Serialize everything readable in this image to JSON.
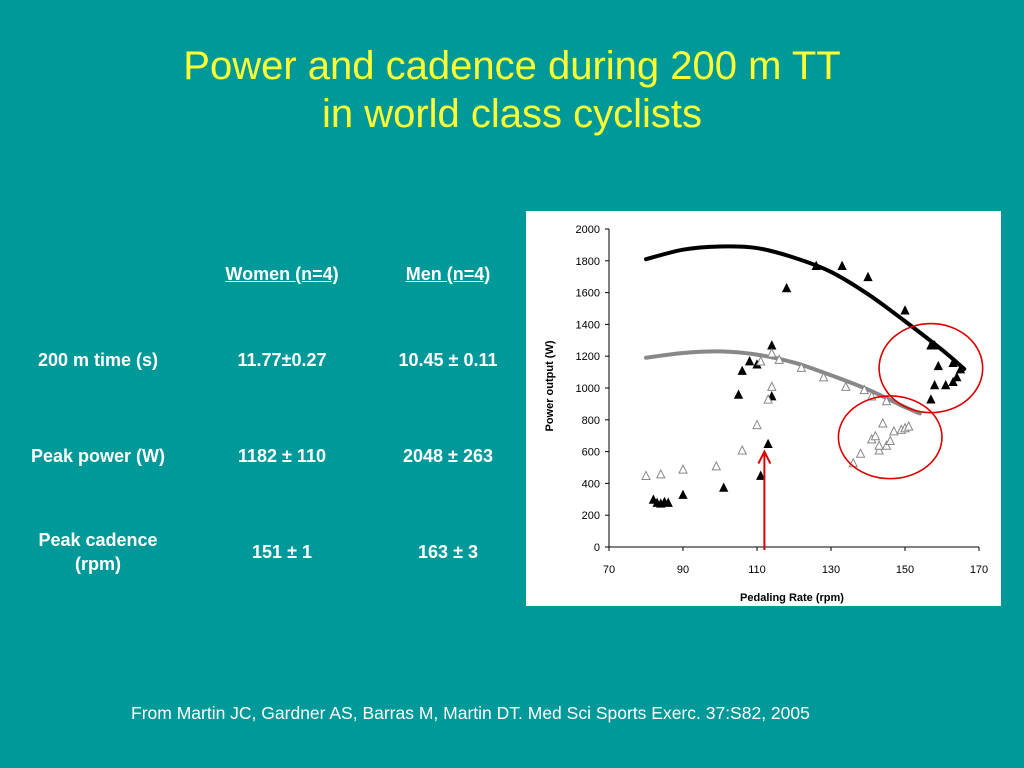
{
  "title": {
    "line1": "Power and cadence during 200 m TT",
    "line2": "in world class cyclists"
  },
  "stats_table": {
    "columns": [
      "Women (n=4)",
      "Men (n=4)"
    ],
    "rows": [
      {
        "label": "200 m time (s)",
        "women": "11.77±0.27",
        "men": "10.45 ± 0.11"
      },
      {
        "label": "Peak power (W)",
        "women": "1182 ± 110",
        "men": "2048 ± 263"
      },
      {
        "label_line1": "Peak cadence",
        "label_line2": "(rpm)",
        "women": "151 ± 1",
        "men": "163 ± 3"
      }
    ]
  },
  "chart_data": {
    "type": "scatter",
    "title": "",
    "xlabel": "Pedaling Rate (rpm)",
    "ylabel": "Power output (W)",
    "xlim": [
      70,
      170
    ],
    "ylim": [
      0,
      2000
    ],
    "x_ticks": [
      70,
      90,
      110,
      130,
      150,
      170
    ],
    "y_ticks": [
      0,
      200,
      400,
      600,
      800,
      1000,
      1200,
      1400,
      1600,
      1800,
      2000
    ],
    "grid": false,
    "legend": "none",
    "series": [
      {
        "marker": "filled-triangle",
        "color": "#000000",
        "points": [
          [
            82,
            300
          ],
          [
            83,
            280
          ],
          [
            84,
            275
          ],
          [
            85,
            285
          ],
          [
            86,
            280
          ],
          [
            90,
            330
          ],
          [
            101,
            375
          ],
          [
            105,
            960
          ],
          [
            106,
            1110
          ],
          [
            108,
            1170
          ],
          [
            110,
            1150
          ],
          [
            111,
            450
          ],
          [
            113,
            650
          ],
          [
            114,
            1270
          ],
          [
            114,
            950
          ],
          [
            118,
            1630
          ],
          [
            126,
            1770
          ],
          [
            133,
            1770
          ],
          [
            140,
            1700
          ],
          [
            150,
            1490
          ],
          [
            157,
            1270
          ],
          [
            158,
            1270
          ],
          [
            157,
            930
          ],
          [
            158,
            1020
          ],
          [
            159,
            1140
          ],
          [
            161,
            1020
          ],
          [
            163,
            1160
          ],
          [
            163,
            1040
          ],
          [
            164,
            1070
          ],
          [
            165,
            1120
          ]
        ]
      },
      {
        "marker": "open-triangle",
        "color": "#888888",
        "points": [
          [
            80,
            450
          ],
          [
            84,
            460
          ],
          [
            90,
            490
          ],
          [
            99,
            510
          ],
          [
            106,
            610
          ],
          [
            110,
            770
          ],
          [
            111,
            1170
          ],
          [
            113,
            930
          ],
          [
            114,
            1010
          ],
          [
            114,
            1220
          ],
          [
            116,
            1180
          ],
          [
            122,
            1130
          ],
          [
            128,
            1070
          ],
          [
            134,
            1010
          ],
          [
            139,
            990
          ],
          [
            141,
            950
          ],
          [
            145,
            920
          ],
          [
            136,
            530
          ],
          [
            138,
            590
          ],
          [
            141,
            680
          ],
          [
            142,
            700
          ],
          [
            143,
            610
          ],
          [
            143,
            640
          ],
          [
            144,
            780
          ],
          [
            145,
            640
          ],
          [
            146,
            670
          ],
          [
            147,
            730
          ],
          [
            149,
            740
          ],
          [
            150,
            750
          ],
          [
            151,
            760
          ]
        ]
      }
    ],
    "curves": [
      {
        "color": "#000000",
        "points": [
          [
            80,
            1810
          ],
          [
            90,
            1870
          ],
          [
            100,
            1890
          ],
          [
            110,
            1880
          ],
          [
            120,
            1820
          ],
          [
            130,
            1730
          ],
          [
            140,
            1590
          ],
          [
            150,
            1420
          ],
          [
            160,
            1240
          ],
          [
            166,
            1120
          ]
        ]
      },
      {
        "color": "#888888",
        "points": [
          [
            80,
            1190
          ],
          [
            90,
            1220
          ],
          [
            100,
            1230
          ],
          [
            110,
            1210
          ],
          [
            120,
            1160
          ],
          [
            130,
            1080
          ],
          [
            140,
            990
          ],
          [
            150,
            880
          ],
          [
            154,
            840
          ]
        ]
      }
    ],
    "annotations": [
      {
        "shape": "ellipse",
        "color": "#dd0000",
        "cx": 157,
        "cy": 1125,
        "rx": 14,
        "ry": 280
      },
      {
        "shape": "ellipse",
        "color": "#dd0000",
        "cx": 146,
        "cy": 690,
        "rx": 14,
        "ry": 260
      },
      {
        "shape": "arrow",
        "color": "#dd0000",
        "x": 112,
        "from_y": 0,
        "to_y": 600
      }
    ]
  },
  "citation": "From Martin JC, Gardner AS, Barras M, Martin DT. Med Sci Sports Exerc. 37:S82, 2005"
}
